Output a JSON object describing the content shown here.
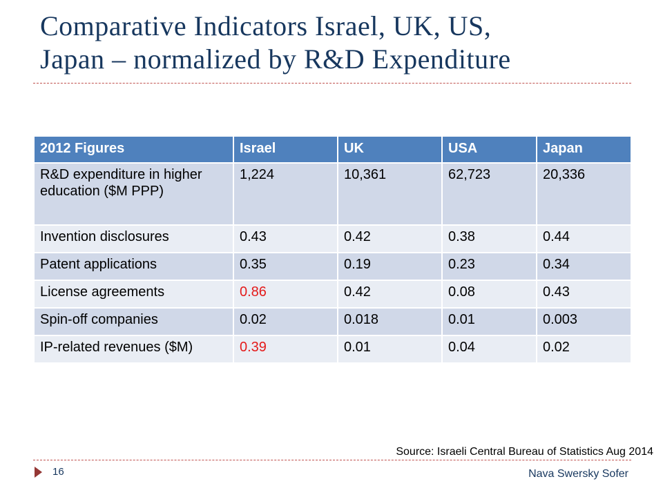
{
  "slide": {
    "title_line1": "Comparative Indicators Israel, UK, US,",
    "title_line2": "Japan – normalized by R&D Expenditure",
    "source": "Source: Israeli Central Bureau of Statistics Aug 2014",
    "page_number": "16",
    "author": "Nava Swersky Sofer"
  },
  "colors": {
    "title": "#17375e",
    "header_bg": "#4f81bd",
    "row_dark": "#d0d8e8",
    "row_light": "#e9edf4",
    "highlight": "#e41a1a",
    "divider": "#c0504d"
  },
  "table": {
    "headers": [
      "2012 Figures",
      "Israel",
      "UK",
      "USA",
      "Japan"
    ],
    "rows": [
      {
        "label": "R&D expenditure in higher education ($M PPP)",
        "israel": "1,224",
        "uk": "10,361",
        "usa": "62,723",
        "japan": "20,336"
      },
      {
        "label": "Invention disclosures",
        "israel": "0.43",
        "uk": "0.42",
        "usa": "0.38",
        "japan": "0.44"
      },
      {
        "label": "Patent applications",
        "israel": "0.35",
        "uk": "0.19",
        "usa": "0.23",
        "japan": "0.34"
      },
      {
        "label": "License agreements",
        "israel": "0.86",
        "uk": "0.42",
        "usa": "0.08",
        "japan": "0.43"
      },
      {
        "label": "Spin-off companies",
        "israel": "0.02",
        "uk": "0.018",
        "usa": "0.01",
        "japan": "0.003"
      },
      {
        "label": "IP-related revenues ($M)",
        "israel": "0.39",
        "uk": "0.01",
        "usa": "0.04",
        "japan": "0.02"
      }
    ]
  }
}
